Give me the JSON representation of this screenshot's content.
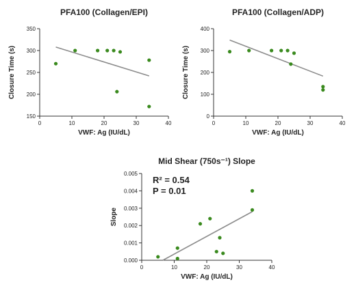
{
  "chart_data": [
    {
      "id": "c1",
      "type": "scatter",
      "title": "PFA100 (Collagen/EPI)",
      "xlabel": "VWF: Ag (IU/dL)",
      "ylabel": "Closure Time (s)",
      "xlim": [
        0,
        40
      ],
      "ylim": [
        150,
        350
      ],
      "xticks": [
        "0",
        "10",
        "20",
        "30",
        "40"
      ],
      "yticks": [
        "150",
        "200",
        "250",
        "300",
        "350"
      ],
      "grid": false,
      "point_color": "#3a8a1e",
      "line_color": "#8c8c8c",
      "points": [
        [
          5,
          270
        ],
        [
          11,
          300
        ],
        [
          18,
          300
        ],
        [
          21,
          300
        ],
        [
          23,
          300
        ],
        [
          25,
          297
        ],
        [
          24,
          206
        ],
        [
          34,
          278
        ],
        [
          34,
          172
        ]
      ],
      "trend": [
        [
          5,
          308
        ],
        [
          34,
          242
        ]
      ]
    },
    {
      "id": "c2",
      "type": "scatter",
      "title": "PFA100 (Collagen/ADP)",
      "xlabel": "VWF: Ag (IU/dL)",
      "ylabel": "Closure Time (s)",
      "xlim": [
        0,
        40
      ],
      "ylim": [
        0,
        400
      ],
      "xticks": [
        "0",
        "10",
        "20",
        "30",
        "40"
      ],
      "yticks": [
        "0",
        "100",
        "200",
        "300",
        "400"
      ],
      "grid": false,
      "point_color": "#3a8a1e",
      "line_color": "#8c8c8c",
      "points": [
        [
          5,
          295
        ],
        [
          11,
          300
        ],
        [
          18,
          300
        ],
        [
          21,
          300
        ],
        [
          23,
          300
        ],
        [
          25,
          288
        ],
        [
          24,
          238
        ],
        [
          34,
          135
        ],
        [
          34,
          120
        ]
      ],
      "trend": [
        [
          5,
          348
        ],
        [
          34,
          183
        ]
      ]
    },
    {
      "id": "c3",
      "type": "scatter",
      "title": "Mid Shear (750s⁻¹) Slope",
      "xlabel": "VWF: Ag (IU/dL)",
      "ylabel": "Slope",
      "xlim": [
        0,
        40
      ],
      "ylim": [
        0,
        0.005
      ],
      "xticks": [
        "0",
        "10",
        "20",
        "30",
        "40"
      ],
      "yticks": [
        "0.000",
        "0.001",
        "0.002",
        "0.003",
        "0.004",
        "0.005"
      ],
      "grid": false,
      "point_color": "#3a8a1e",
      "line_color": "#8c8c8c",
      "annotations": [
        "R² = 0.54",
        "P = 0.01"
      ],
      "points": [
        [
          5,
          0.0002
        ],
        [
          11,
          0.0007
        ],
        [
          11,
          0.0001
        ],
        [
          18,
          0.0021
        ],
        [
          21,
          0.0024
        ],
        [
          23,
          0.0005
        ],
        [
          24,
          0.0013
        ],
        [
          25,
          0.0004
        ],
        [
          34,
          0.004
        ],
        [
          34,
          0.0029
        ]
      ],
      "trend": [
        [
          6.5,
          0
        ],
        [
          34,
          0.0028
        ]
      ]
    }
  ]
}
